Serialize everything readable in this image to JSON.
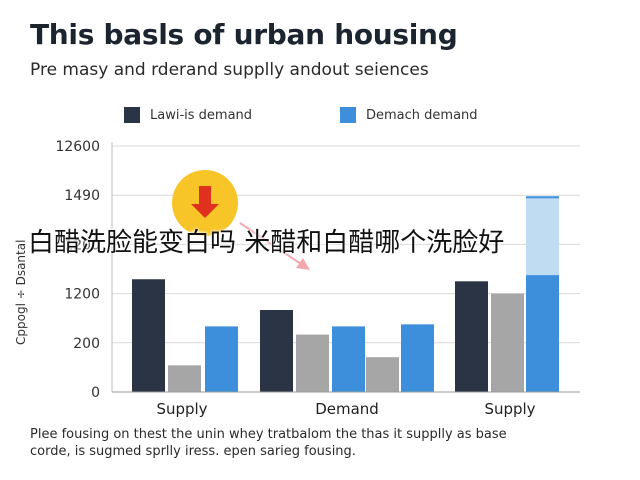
{
  "title": "This basls of urban housing",
  "subtitle": "Pre masy and rderand supplly andout seiences",
  "legend": [
    {
      "label": "Lawi-is demand",
      "color": "#2a3444"
    },
    {
      "label": "Demach demand",
      "color": "#3d8fdb"
    }
  ],
  "ylabel": {
    "line1": "Cppogl ÷ Dsantal",
    "line2": ""
  },
  "overlay_text": "白醋洗脸能变白吗 米醋和白醋哪个洗脸好",
  "icon": {
    "name": "down-arrow-icon",
    "circle_color": "#f7c21b",
    "arrow_color": "#e0301e"
  },
  "caption": {
    "line1": "Plee fousing on thest the unin whey tratbalom the thas it supplly as base",
    "line2": "corde, is sugmed sprlly iress. epen sarieg fousing."
  },
  "chart_data": {
    "type": "bar",
    "categories": [
      "Supply",
      "Demand",
      "Supply"
    ],
    "y_tick_labels": [
      "0",
      "200",
      "1200",
      "1200",
      "1490",
      "12600"
    ],
    "series": [
      {
        "color": "#2a3444",
        "values": [
          5.5,
          4.0,
          5.4
        ]
      },
      {
        "color": "#a6a6a6",
        "values": [
          1.3,
          2.8,
          4.8
        ]
      },
      {
        "color": "#3d8fdb",
        "values": [
          3.2,
          3.2,
          5.7
        ]
      },
      {
        "color": "#a6a6a6",
        "values": [
          null,
          1.7,
          null
        ]
      },
      {
        "color": "#3d8fdb",
        "values": [
          null,
          3.3,
          null
        ]
      }
    ],
    "highlight": {
      "category_index": 2,
      "value": 9.5,
      "color": "#bfdcf3"
    },
    "ylim": [
      0,
      12
    ],
    "grid": true
  }
}
